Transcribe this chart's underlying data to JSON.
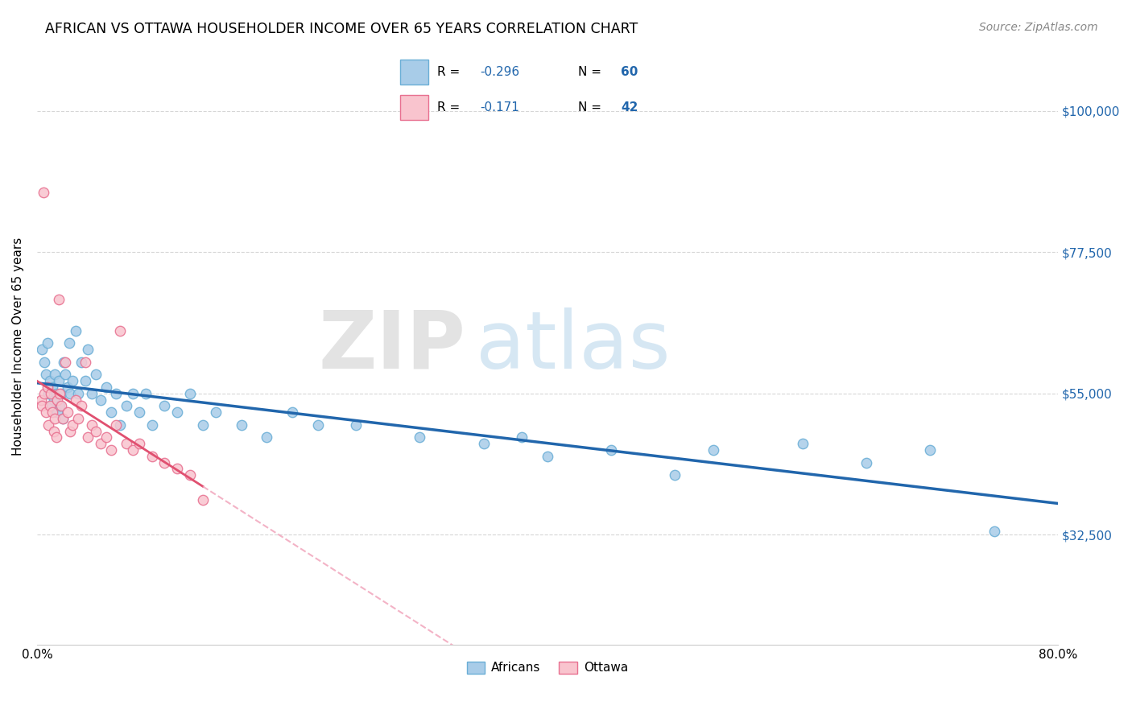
{
  "title": "AFRICAN VS OTTAWA HOUSEHOLDER INCOME OVER 65 YEARS CORRELATION CHART",
  "source": "Source: ZipAtlas.com",
  "ylabel": "Householder Income Over 65 years",
  "ytick_labels": [
    "$32,500",
    "$55,000",
    "$77,500",
    "$100,000"
  ],
  "ytick_values": [
    32500,
    55000,
    77500,
    100000
  ],
  "africans_color": "#a8cce8",
  "africans_edge": "#6aaed6",
  "ottawa_color": "#f9c4ce",
  "ottawa_edge": "#e87090",
  "africans_line_color": "#2166ac",
  "ottawa_line_solid_color": "#e05070",
  "ottawa_line_dash_color": "#f0a0b8",
  "watermark_zip": "ZIP",
  "watermark_atlas": "atlas",
  "xlim": [
    0.0,
    0.8
  ],
  "ylim": [
    15000,
    110000
  ],
  "africans_x": [
    0.004,
    0.006,
    0.007,
    0.008,
    0.009,
    0.01,
    0.011,
    0.012,
    0.013,
    0.014,
    0.015,
    0.016,
    0.017,
    0.018,
    0.019,
    0.02,
    0.021,
    0.022,
    0.024,
    0.025,
    0.026,
    0.028,
    0.03,
    0.032,
    0.035,
    0.038,
    0.04,
    0.043,
    0.046,
    0.05,
    0.054,
    0.058,
    0.062,
    0.065,
    0.07,
    0.075,
    0.08,
    0.085,
    0.09,
    0.1,
    0.11,
    0.12,
    0.13,
    0.14,
    0.16,
    0.18,
    0.2,
    0.22,
    0.25,
    0.3,
    0.35,
    0.38,
    0.4,
    0.45,
    0.5,
    0.53,
    0.6,
    0.65,
    0.7,
    0.75
  ],
  "africans_y": [
    62000,
    60000,
    58000,
    63000,
    55000,
    57000,
    53000,
    56000,
    54000,
    58000,
    55000,
    52000,
    57000,
    53000,
    55000,
    51000,
    60000,
    58000,
    56000,
    63000,
    55000,
    57000,
    65000,
    55000,
    60000,
    57000,
    62000,
    55000,
    58000,
    54000,
    56000,
    52000,
    55000,
    50000,
    53000,
    55000,
    52000,
    55000,
    50000,
    53000,
    52000,
    55000,
    50000,
    52000,
    50000,
    48000,
    52000,
    50000,
    50000,
    48000,
    47000,
    48000,
    45000,
    46000,
    42000,
    46000,
    47000,
    44000,
    46000,
    33000
  ],
  "ottawa_x": [
    0.003,
    0.004,
    0.005,
    0.006,
    0.007,
    0.008,
    0.009,
    0.01,
    0.011,
    0.012,
    0.013,
    0.014,
    0.015,
    0.016,
    0.017,
    0.018,
    0.019,
    0.02,
    0.022,
    0.024,
    0.026,
    0.028,
    0.03,
    0.032,
    0.035,
    0.038,
    0.04,
    0.043,
    0.046,
    0.05,
    0.054,
    0.058,
    0.062,
    0.065,
    0.07,
    0.075,
    0.08,
    0.09,
    0.1,
    0.11,
    0.12,
    0.13
  ],
  "ottawa_y": [
    54000,
    53000,
    87000,
    55000,
    52000,
    56000,
    50000,
    53000,
    55000,
    52000,
    49000,
    51000,
    48000,
    54000,
    70000,
    55000,
    53000,
    51000,
    60000,
    52000,
    49000,
    50000,
    54000,
    51000,
    53000,
    60000,
    48000,
    50000,
    49000,
    47000,
    48000,
    46000,
    50000,
    65000,
    47000,
    46000,
    47000,
    45000,
    44000,
    43000,
    42000,
    38000
  ]
}
